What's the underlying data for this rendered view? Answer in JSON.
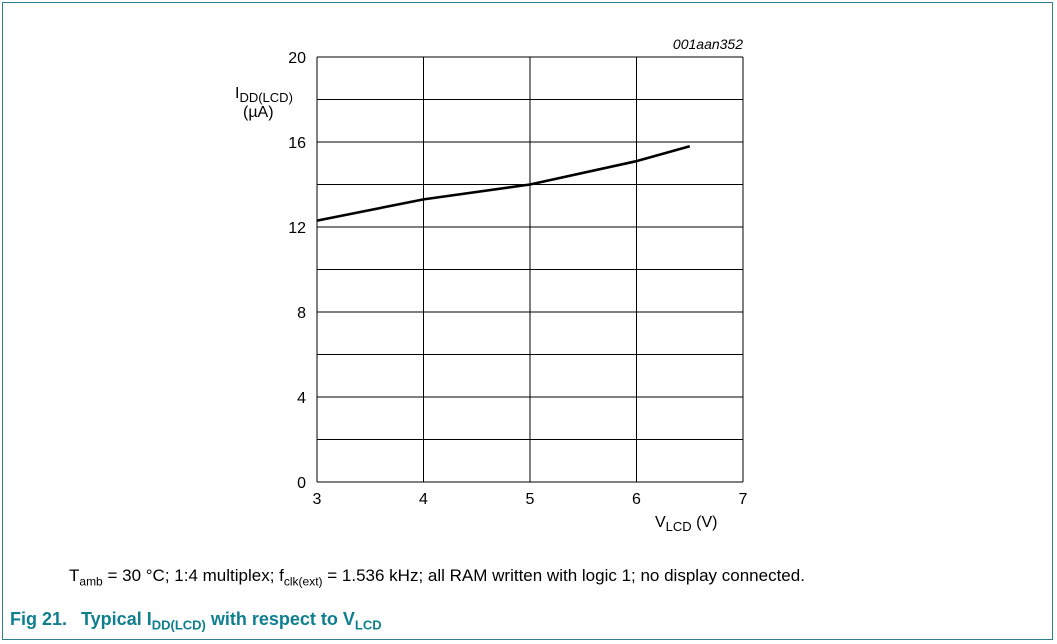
{
  "chart_data": {
    "type": "line",
    "figure_code": "001aan352",
    "xlabel": {
      "main": "V",
      "sub": "LCD",
      "unit": " (V)"
    },
    "ylabel": {
      "main": "I",
      "sub": "DD(LCD)",
      "unit": "(µA)"
    },
    "xlim": [
      3,
      7
    ],
    "ylim": [
      0,
      20
    ],
    "x_ticks": [
      "3",
      "4",
      "5",
      "6",
      "7"
    ],
    "y_ticks": [
      "0",
      "4",
      "8",
      "12",
      "16",
      "20"
    ],
    "x_grid_step": 1,
    "y_grid_step": 2,
    "grid": true,
    "series": [
      {
        "x": [
          3.0,
          4.0,
          5.0,
          6.0,
          6.5
        ],
        "y": [
          12.3,
          13.3,
          14.0,
          15.1,
          15.8
        ]
      }
    ]
  },
  "note": {
    "t": "T",
    "t_sub": "amb",
    "part1": " = 30 °C; 1:4 multiplex; f",
    "f_sub": "clk(ext)",
    "part2": " = 1.536 kHz; all RAM written with logic 1; no display connected."
  },
  "caption": {
    "fig": "Fig 21.",
    "title_a": "Typical I",
    "title_a_sub": "DD(LCD)",
    "title_b": " with respect to V",
    "title_b_sub": "LCD"
  }
}
